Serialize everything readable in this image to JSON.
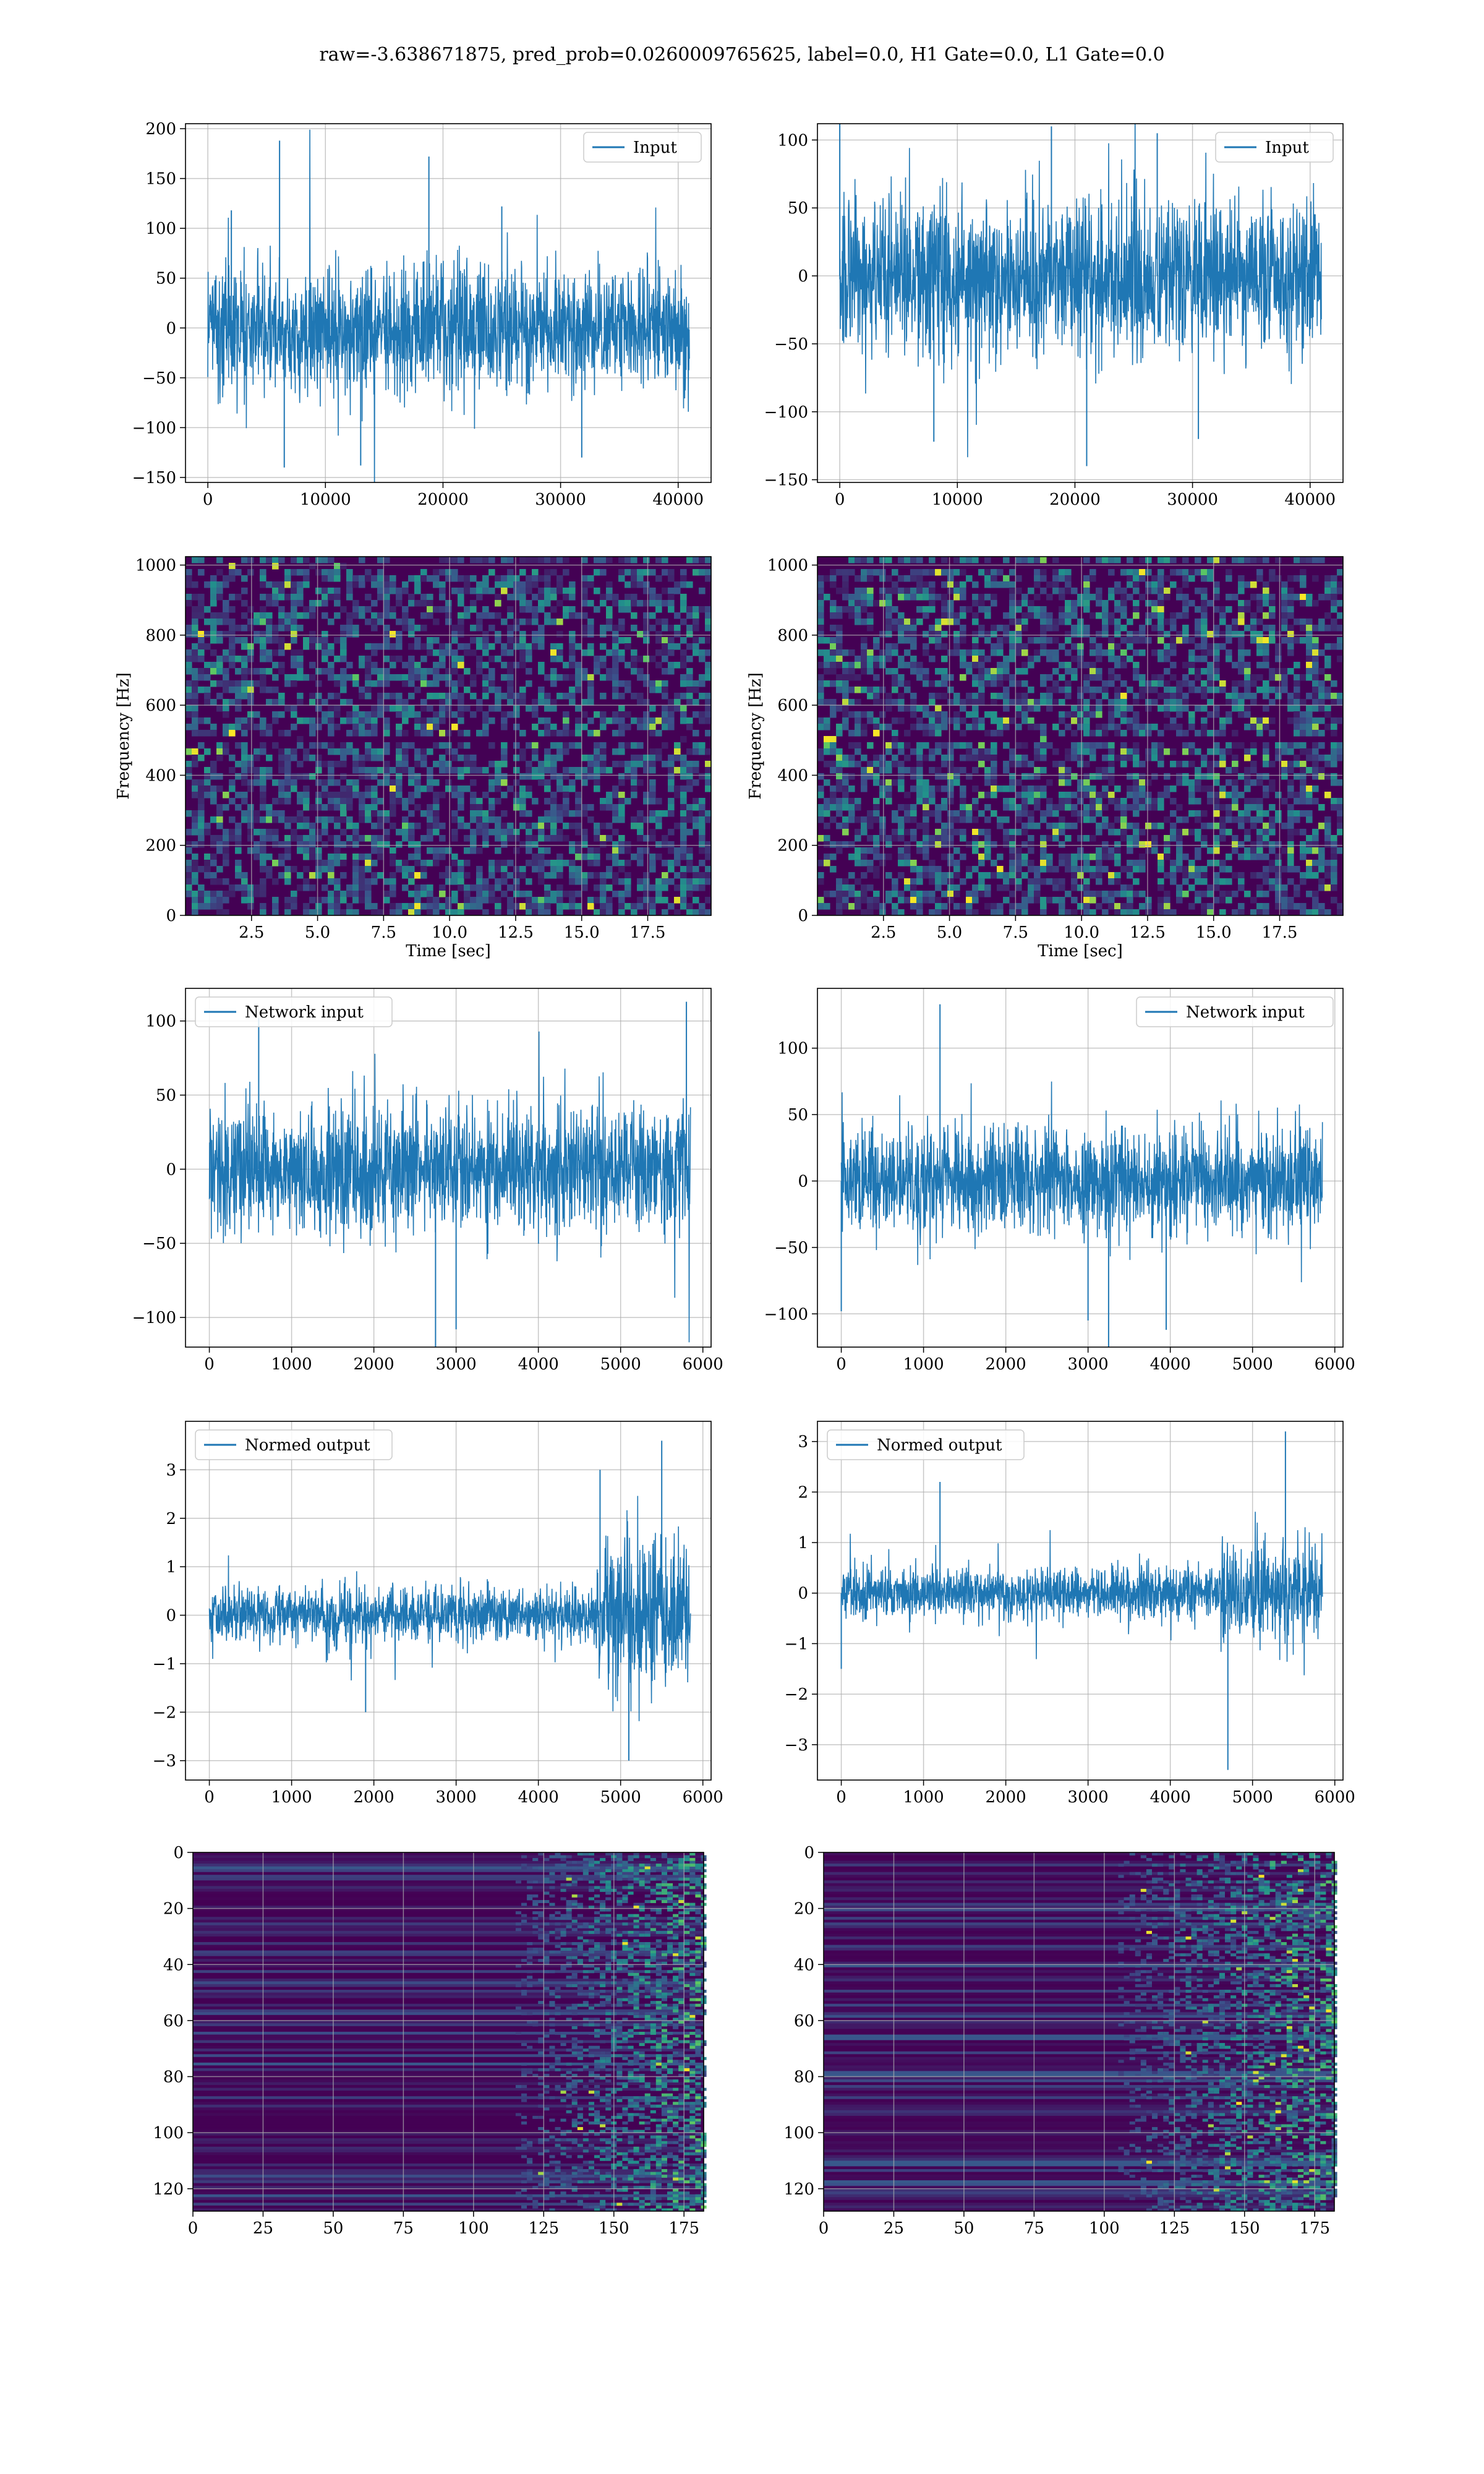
{
  "figure_title": "raw=-3.638671875, pred_prob=0.0260009765625, label=0.0, H1 Gate=0.0, L1 Gate=0.0",
  "colors": {
    "series": "#1f77b4",
    "grid": "#b0b0b0",
    "viridis_low": "#440154",
    "viridis_mid": "#21918c",
    "viridis_high": "#fde725"
  },
  "chart_data": [
    {
      "id": "h1-input",
      "type": "line",
      "legend": "Input",
      "legend_position": "top-right",
      "xlim": [
        -1900,
        42800
      ],
      "ylim": [
        -155,
        205
      ],
      "xticks": [
        0,
        10000,
        20000,
        30000,
        40000
      ],
      "yticks": [
        -150,
        -100,
        -50,
        0,
        50,
        100,
        150,
        200
      ],
      "x_end": 40960,
      "envelope": 55,
      "spikes": [
        [
          6100,
          188
        ],
        [
          6500,
          -140
        ],
        [
          18800,
          172
        ],
        [
          13000,
          -138
        ],
        [
          31800,
          -130
        ],
        [
          2000,
          118
        ],
        [
          25000,
          122
        ]
      ],
      "grid": true,
      "xlabel": "",
      "ylabel": ""
    },
    {
      "id": "l1-input",
      "type": "line",
      "legend": "Input",
      "legend_position": "top-right",
      "xlim": [
        -1900,
        42800
      ],
      "ylim": [
        -152,
        112
      ],
      "xticks": [
        0,
        10000,
        20000,
        30000,
        40000
      ],
      "yticks": [
        -150,
        -100,
        -50,
        0,
        50,
        100
      ],
      "x_end": 40960,
      "envelope": 52,
      "spikes": [
        [
          0,
          120
        ],
        [
          21000,
          -140
        ],
        [
          27000,
          105
        ],
        [
          30500,
          -120
        ],
        [
          18000,
          110
        ],
        [
          8000,
          -122
        ]
      ],
      "grid": true,
      "xlabel": "",
      "ylabel": ""
    },
    {
      "id": "h1-spectrogram",
      "type": "heatmap",
      "colormap": "viridis",
      "xlim": [
        0,
        19.9
      ],
      "ylim": [
        0,
        1024
      ],
      "xticks": [
        2.5,
        5.0,
        7.5,
        10.0,
        12.5,
        15.0,
        17.5
      ],
      "xtick_labels": [
        "2.5",
        "5.0",
        "7.5",
        "10.0",
        "12.5",
        "15.0",
        "17.5"
      ],
      "yticks": [
        0,
        200,
        400,
        600,
        800,
        1000
      ],
      "xlabel": "Time [sec]",
      "ylabel": "Frequency [Hz]",
      "grid": true,
      "dark_rows_hz": [
        505,
        1000
      ],
      "hot_fraction": 0.012
    },
    {
      "id": "l1-spectrogram",
      "type": "heatmap",
      "colormap": "viridis",
      "xlim": [
        0,
        19.9
      ],
      "ylim": [
        0,
        1024
      ],
      "xticks": [
        2.5,
        5.0,
        7.5,
        10.0,
        12.5,
        15.0,
        17.5
      ],
      "xtick_labels": [
        "2.5",
        "5.0",
        "7.5",
        "10.0",
        "12.5",
        "15.0",
        "17.5"
      ],
      "yticks": [
        0,
        200,
        400,
        600,
        800,
        1000
      ],
      "xlabel": "Time [sec]",
      "ylabel": "Frequency [Hz]",
      "grid": true,
      "dark_rows_hz": [
        505,
        1000
      ],
      "hot_fraction": 0.03
    },
    {
      "id": "h1-network-input",
      "type": "line",
      "legend": "Network input",
      "legend_position": "top-left",
      "xlim": [
        -290,
        6100
      ],
      "ylim": [
        -120,
        122
      ],
      "xticks": [
        0,
        1000,
        2000,
        3000,
        4000,
        5000,
        6000
      ],
      "yticks": [
        -100,
        -50,
        0,
        50,
        100
      ],
      "x_end": 5850,
      "envelope": 38,
      "spikes": [
        [
          2750,
          -120
        ],
        [
          3000,
          -108
        ],
        [
          5800,
          113
        ],
        [
          600,
          102
        ]
      ],
      "grid": true,
      "xlabel": "",
      "ylabel": ""
    },
    {
      "id": "l1-network-input",
      "type": "line",
      "legend": "Network input",
      "legend_position": "top-right",
      "xlim": [
        -290,
        6100
      ],
      "ylim": [
        -125,
        145
      ],
      "xticks": [
        0,
        1000,
        2000,
        3000,
        4000,
        5000,
        6000
      ],
      "yticks": [
        -100,
        -50,
        0,
        50,
        100
      ],
      "x_end": 5850,
      "envelope": 35,
      "spikes": [
        [
          1200,
          133
        ],
        [
          3250,
          -125
        ],
        [
          3000,
          -105
        ],
        [
          3950,
          -112
        ],
        [
          0,
          -98
        ]
      ],
      "grid": true,
      "xlabel": "",
      "ylabel": ""
    },
    {
      "id": "h1-normed-output",
      "type": "line",
      "legend": "Normed output",
      "legend_position": "top-left",
      "xlim": [
        -290,
        6100
      ],
      "ylim": [
        -3.4,
        4.0
      ],
      "xticks": [
        0,
        1000,
        2000,
        3000,
        4000,
        5000,
        6000
      ],
      "yticks": [
        -3,
        -2,
        -1,
        0,
        1,
        2,
        3
      ],
      "x_end": 5850,
      "envelope": 0.5,
      "burst_start": 4700,
      "burst_envelope": 1.3,
      "spikes": [
        [
          5500,
          3.6
        ],
        [
          5100,
          -3.0
        ],
        [
          4750,
          3.0
        ],
        [
          1900,
          -2.0
        ]
      ],
      "grid": true,
      "xlabel": "",
      "ylabel": ""
    },
    {
      "id": "l1-normed-output",
      "type": "line",
      "legend": "Normed output",
      "legend_position": "top-left",
      "xlim": [
        -290,
        6100
      ],
      "ylim": [
        -3.7,
        3.4
      ],
      "xticks": [
        0,
        1000,
        2000,
        3000,
        4000,
        5000,
        6000
      ],
      "yticks": [
        -3,
        -2,
        -1,
        0,
        1,
        2,
        3
      ],
      "x_end": 5850,
      "envelope": 0.45,
      "burst_start": 4600,
      "burst_envelope": 0.9,
      "spikes": [
        [
          4700,
          -3.5
        ],
        [
          5400,
          3.2
        ],
        [
          1200,
          2.2
        ],
        [
          0,
          -1.5
        ]
      ],
      "grid": true,
      "xlabel": "",
      "ylabel": ""
    },
    {
      "id": "h1-features",
      "type": "heatmap",
      "colormap": "viridis",
      "xlim": [
        0,
        182
      ],
      "ylim": [
        128,
        0
      ],
      "xticks": [
        0,
        25,
        50,
        75,
        100,
        125,
        150,
        175
      ],
      "yticks": [
        0,
        20,
        40,
        60,
        80,
        100,
        120
      ],
      "grid": true,
      "activity_onset": 115
    },
    {
      "id": "l1-features",
      "type": "heatmap",
      "colormap": "viridis",
      "xlim": [
        0,
        182
      ],
      "ylim": [
        128,
        0
      ],
      "xticks": [
        0,
        25,
        50,
        75,
        100,
        125,
        150,
        175
      ],
      "yticks": [
        0,
        20,
        40,
        60,
        80,
        100,
        120
      ],
      "grid": true,
      "activity_onset": 105
    }
  ]
}
